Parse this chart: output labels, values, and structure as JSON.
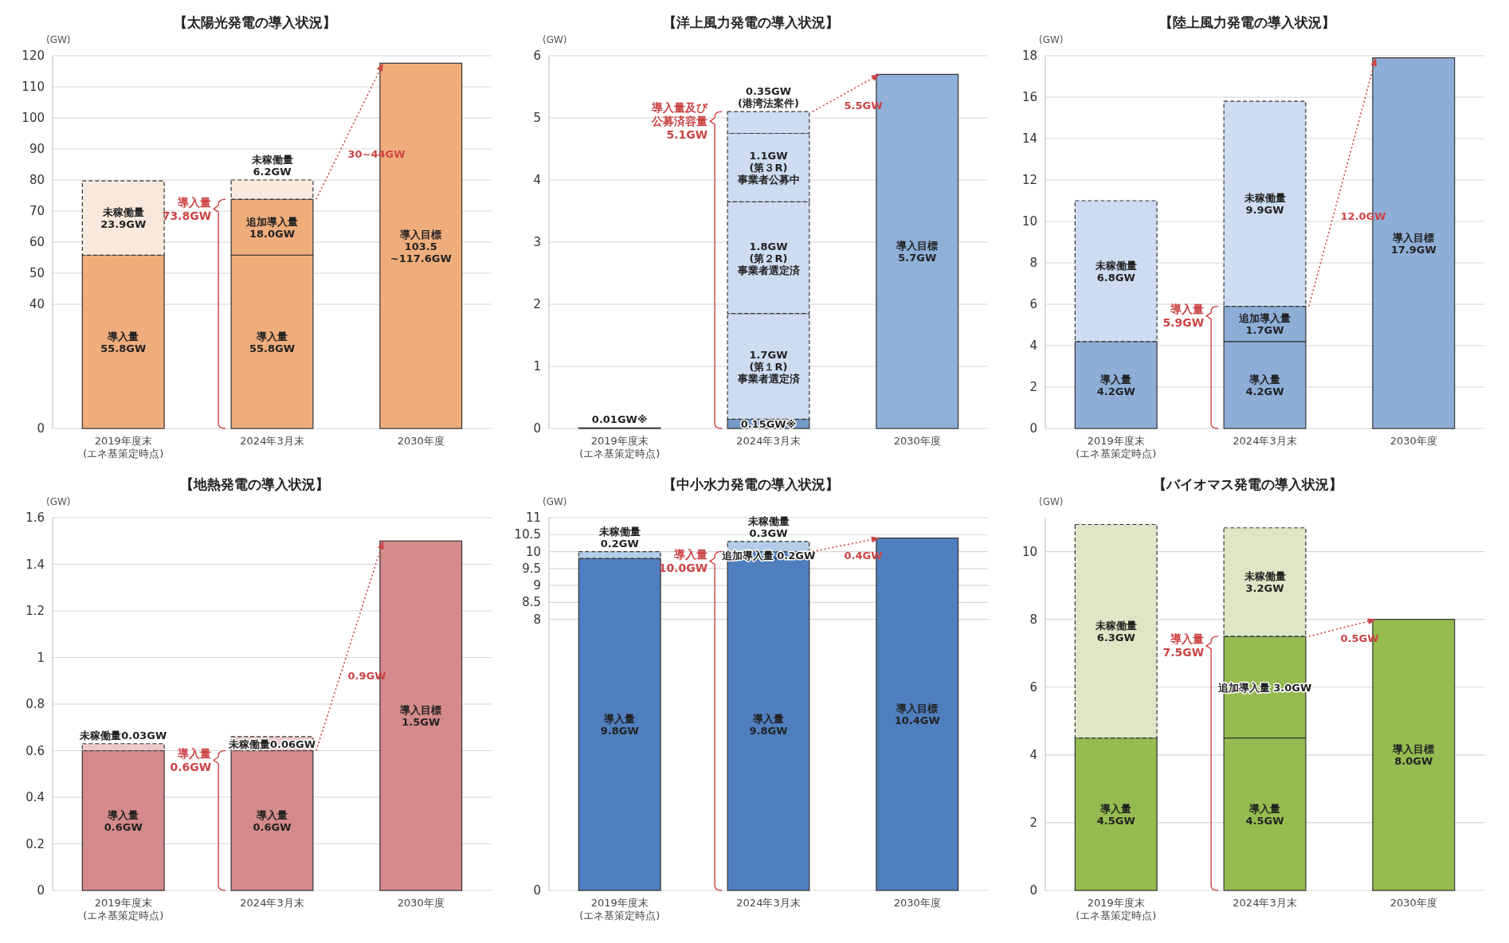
{
  "chart_data": [
    {
      "type": "bar",
      "title": "【太陽光発電の導入状況】",
      "ylabel": "(GW)",
      "stacked": true,
      "grid": "y",
      "ylim": [
        0,
        120
      ],
      "yticks": [
        0,
        40,
        50,
        60,
        70,
        80,
        90,
        100,
        110,
        120
      ],
      "categories": [
        "2019年度末\n(エネ基策定時点)",
        "2024年3月末",
        "2030年度"
      ],
      "series": [
        {
          "color": "#f0ad7c",
          "values": [
            55.8,
            55.8,
            null
          ],
          "value_labels": [
            "導入量\n55.8GW",
            "導入量\n55.8GW",
            null
          ]
        },
        {
          "color": "#f0ad7c",
          "values": [
            null,
            18.0,
            null
          ],
          "value_labels": [
            null,
            "追加導入量\n18.0GW",
            null
          ]
        },
        {
          "color": "#f9e9dc",
          "line_style": "dashed",
          "values": [
            23.9,
            6.2,
            null
          ],
          "value_labels": [
            "未稼働量\n23.9GW",
            "未稼働量\n6.2GW",
            null
          ]
        },
        {
          "color": "#f0ad7c",
          "values": [
            null,
            null,
            117.6
          ],
          "value_labels": [
            null,
            null,
            "導入目標\n103.5\n~117.6GW"
          ]
        }
      ],
      "annotations": [
        "導入量\n73.8GW",
        "30~44GW"
      ]
    },
    {
      "type": "bar",
      "title": "【洋上風力発電の導入状況】",
      "ylabel": "(GW)",
      "stacked": true,
      "grid": "y",
      "ylim": [
        0,
        6
      ],
      "yticks": [
        0,
        1,
        2,
        3,
        4,
        5,
        6
      ],
      "categories": [
        "2019年度末\n(エネ基策定時点)",
        "2024年3月末",
        "2030年度"
      ],
      "series": [
        {
          "color": "#7399c9",
          "values": [
            0.01,
            0.15,
            null
          ],
          "value_labels": [
            "0.01GW※",
            "0.15GW※",
            null
          ]
        },
        {
          "color": "#cddcf0",
          "line_style": "dashed",
          "values": [
            null,
            1.7,
            null
          ],
          "value_labels": [
            null,
            "1.7GW\n(第１R)\n事業者選定済",
            null
          ]
        },
        {
          "color": "#cddcf0",
          "line_style": "dashed",
          "values": [
            null,
            1.8,
            null
          ],
          "value_labels": [
            null,
            "1.8GW\n(第２R)\n事業者選定済",
            null
          ]
        },
        {
          "color": "#cddcf0",
          "line_style": "dashed",
          "values": [
            null,
            1.1,
            null
          ],
          "value_labels": [
            null,
            "1.1GW\n(第３R)\n事業者公募中",
            null
          ]
        },
        {
          "color": "#cddcf0",
          "line_style": "dashed",
          "values": [
            null,
            0.35,
            null
          ],
          "value_labels": [
            null,
            "0.35GW\n(港湾法案件)",
            null
          ]
        },
        {
          "color": "#8fb0d9",
          "values": [
            null,
            null,
            5.7
          ],
          "value_labels": [
            null,
            null,
            "導入目標\n5.7GW"
          ]
        }
      ],
      "annotations": [
        "導入量及び公募済容量\n5.1GW",
        "5.5GW"
      ]
    },
    {
      "type": "bar",
      "title": "【陸上風力発電の導入状況】",
      "ylabel": "(GW)",
      "stacked": true,
      "grid": "y",
      "ylim": [
        0,
        18
      ],
      "yticks": [
        0,
        2,
        4,
        6,
        8,
        10,
        12,
        14,
        16,
        18
      ],
      "categories": [
        "2019年度末\n(エネ基策定時点)",
        "2024年3月末",
        "2030年度"
      ],
      "series": [
        {
          "color": "#8eaed8",
          "values": [
            4.2,
            4.2,
            null
          ],
          "value_labels": [
            "導入量\n4.2GW",
            "導入量\n4.2GW",
            null
          ]
        },
        {
          "color": "#8eaed8",
          "values": [
            null,
            1.7,
            null
          ],
          "value_labels": [
            null,
            "追加導入量\n1.7GW",
            null
          ]
        },
        {
          "color": "#cddcf0",
          "line_style": "dashed",
          "values": [
            6.8,
            9.9,
            null
          ],
          "value_labels": [
            "未稼働量\n6.8GW",
            "未稼働量\n9.9GW",
            null
          ]
        },
        {
          "color": "#8eaed8",
          "values": [
            null,
            null,
            17.9
          ],
          "value_labels": [
            null,
            null,
            "導入目標\n17.9GW"
          ]
        }
      ],
      "annotations": [
        "導入量\n5.9GW",
        "12.0GW"
      ]
    },
    {
      "type": "bar",
      "title": "【地熱発電の導入状況】",
      "ylabel": "(GW)",
      "stacked": true,
      "grid": "y",
      "ylim": [
        0,
        1.6
      ],
      "yticks": [
        0,
        0.2,
        0.4,
        0.6,
        0.8,
        1,
        1.2,
        1.4,
        1.6
      ],
      "categories": [
        "2019年度末\n(エネ基策定時点)",
        "2024年3月末",
        "2030年度"
      ],
      "series": [
        {
          "color": "#d58b8b",
          "values": [
            0.6,
            0.6,
            null
          ],
          "value_labels": [
            "導入量\n0.6GW",
            "導入量\n0.6GW",
            null
          ]
        },
        {
          "color": "#eccaca",
          "line_style": "dashed",
          "values": [
            0.03,
            0.06,
            null
          ],
          "value_labels": [
            "未稼働量0.03GW",
            "未稼働量0.06GW",
            null
          ]
        },
        {
          "color": "#d58b8b",
          "values": [
            null,
            null,
            1.5
          ],
          "value_labels": [
            null,
            null,
            "導入目標\n1.5GW"
          ]
        }
      ],
      "annotations": [
        "導入量\n0.6GW",
        "0.9GW"
      ]
    },
    {
      "type": "bar",
      "title": "【中小水力発電の導入状況】",
      "ylabel": "(GW)",
      "stacked": true,
      "grid": "y",
      "ylim": [
        0,
        11
      ],
      "yticks": [
        0,
        8,
        8.5,
        9,
        9.5,
        10,
        10.5,
        11
      ],
      "categories": [
        "2019年度末\n(エネ基策定時点)",
        "2024年3月末",
        "2030年度"
      ],
      "series": [
        {
          "color": "#4f7fbf",
          "values": [
            9.8,
            9.8,
            null
          ],
          "value_labels": [
            "導入量\n9.8GW",
            "導入量\n9.8GW",
            null
          ]
        },
        {
          "color": "#4f7fbf",
          "values": [
            null,
            0.2,
            null
          ],
          "value_labels": [
            null,
            "追加導入量 0.2GW",
            null
          ]
        },
        {
          "color": "#b4cce8",
          "line_style": "dashed",
          "values": [
            0.2,
            0.3,
            null
          ],
          "value_labels": [
            "未稼働量\n0.2GW",
            "未稼働量\n0.3GW",
            null
          ]
        },
        {
          "color": "#4f7fbf",
          "values": [
            null,
            null,
            10.4
          ],
          "value_labels": [
            null,
            null,
            "導入目標\n10.4GW"
          ]
        }
      ],
      "annotations": [
        "導入量\n10.0GW",
        "0.4GW"
      ]
    },
    {
      "type": "bar",
      "title": "【バイオマス発電の導入状況】",
      "ylabel": "(GW)",
      "stacked": true,
      "grid": "y",
      "ylim": [
        0,
        11
      ],
      "yticks": [
        0,
        2,
        4,
        6,
        8,
        10
      ],
      "categories": [
        "2019年度末\n(エネ基策定時点)",
        "2024年3月末",
        "2030年度"
      ],
      "series": [
        {
          "color": "#96bb50",
          "values": [
            4.5,
            4.5,
            null
          ],
          "value_labels": [
            "導入量\n4.5GW",
            "導入量\n4.5GW",
            null
          ]
        },
        {
          "color": "#96bb50",
          "values": [
            null,
            3.0,
            null
          ],
          "value_labels": [
            null,
            "追加導入量 3.0GW",
            null
          ]
        },
        {
          "color": "#dfe6c6",
          "line_style": "dashed",
          "values": [
            6.3,
            3.2,
            null
          ],
          "value_labels": [
            "未稼働量\n6.3GW",
            "未稼働量\n3.2GW",
            null
          ]
        },
        {
          "color": "#96bb50",
          "values": [
            null,
            null,
            8.0
          ],
          "value_labels": [
            null,
            null,
            "導入目標\n8.0GW"
          ]
        }
      ],
      "annotations": [
        "導入量\n7.5GW",
        "0.5GW"
      ]
    }
  ]
}
